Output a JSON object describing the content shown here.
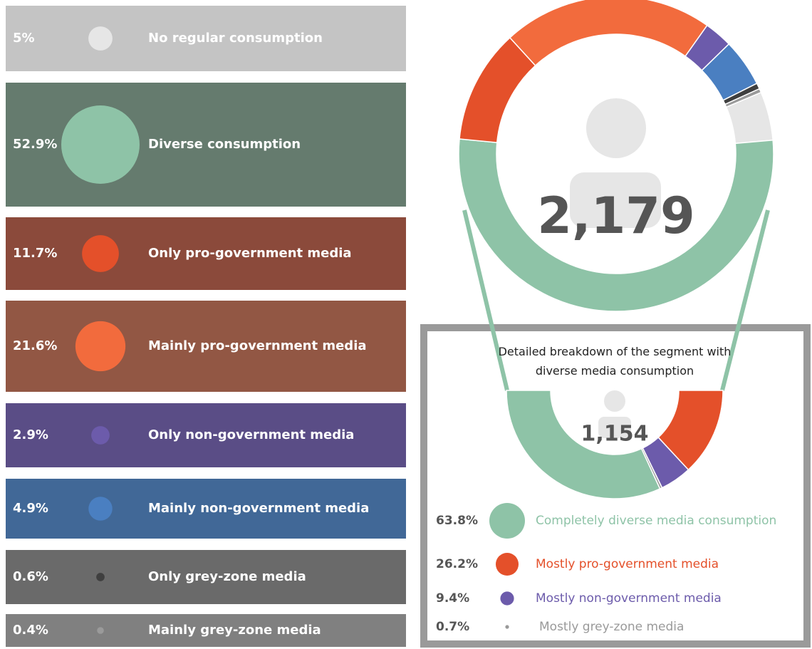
{
  "chart_data": [
    {
      "type": "donut",
      "total": {
        "value": 2179,
        "label": "2,179"
      },
      "categories": [
        "No regular consumption",
        "Diverse consumption",
        "Only pro-government media",
        "Mainly pro-government media",
        "Only non-government media",
        "Mainly non-government media",
        "Only grey-zone media",
        "Mainly grey-zone media"
      ],
      "values": [
        5,
        52.9,
        11.7,
        21.6,
        2.9,
        4.9,
        0.6,
        0.4
      ],
      "value_labels": [
        "5%",
        "52.9%",
        "11.7%",
        "21.6%",
        "2.9%",
        "4.9%",
        "0.6%",
        "0.4%"
      ],
      "colors": [
        "#e6e6e6",
        "#8ec3a7",
        "#e4502a",
        "#f26b3d",
        "#6c5bab",
        "#4a7fc1",
        "#3f3f3f",
        "#9a9a9a"
      ],
      "background_colors": [
        "#c4c4c4",
        "#657b6e",
        "#8b4a3b",
        "#925744",
        "#5a4d86",
        "#416897",
        "#6a6a6a",
        "#808080"
      ]
    },
    {
      "type": "half-donut",
      "title": "Detailed breakdown of the segment with diverse media consumption",
      "total": {
        "value": 1154,
        "label": "1,154"
      },
      "categories": [
        "Completely diverse media consumption",
        "Mostly pro-government media",
        "Mostly non-government media",
        "Mostly grey-zone media"
      ],
      "values": [
        63.8,
        26.2,
        9.4,
        0.7
      ],
      "value_labels": [
        "63.8%",
        "26.2%",
        "9.4%",
        "0.7%"
      ],
      "colors": [
        "#8ec3a7",
        "#e4502a",
        "#6c5bab",
        "#9a9a9a"
      ]
    }
  ]
}
